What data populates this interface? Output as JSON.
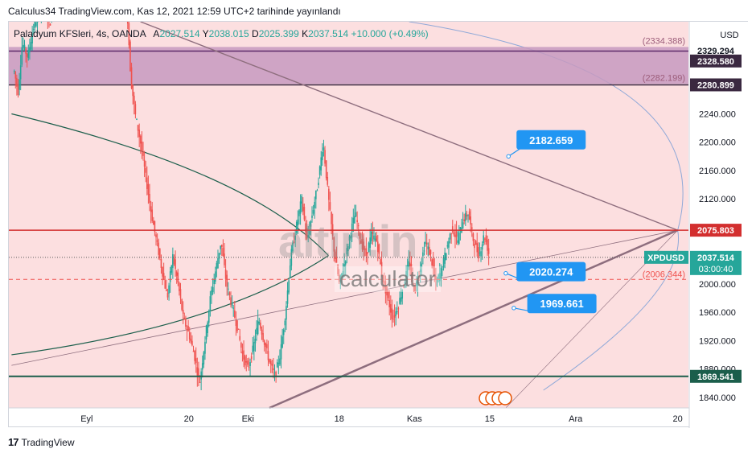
{
  "header": {
    "publisher_line": "Calculus34 TradingView.com, Kas 12, 2021 12:59 UTC+2 tarihinde yayınlandı"
  },
  "legend": {
    "symbol": "Paladyum KFSleri, 4s, OANDA",
    "open_label": "A",
    "open": "2027.514",
    "high_label": "Y",
    "high": "2038.015",
    "low_label": "D",
    "low": "2025.399",
    "close_label": "K",
    "close": "2037.514",
    "change": "+10.000 (+0.49%)"
  },
  "currency": "USD",
  "footer": {
    "brand": "TradingView",
    "logo_icon": "tradingview-logo-icon"
  },
  "watermark": {
    "brand": "altın.in",
    "sub": "calculator"
  },
  "colors": {
    "bg": "#fcdfe0",
    "zone": "#c79ac0",
    "up": "#26a69a",
    "down": "#ef5350",
    "red_line": "#d32f2f",
    "dark_green": "#1b5e4b",
    "trend": "#8e6e7e",
    "arc": "#90a9d8",
    "callout": "#2196f3"
  },
  "chart_data": {
    "type": "candlestick",
    "title": "Paladyum KFSleri, 4s, OANDA",
    "ylabel": "USD",
    "ylim": [
      1825,
      2370
    ],
    "y_ticks": [
      1840,
      1880,
      1920,
      1960,
      2000,
      2040,
      2080,
      2120,
      2160,
      2200,
      2240
    ],
    "y_tick_labels": [
      "1840.000",
      "1880.000",
      "1920.000",
      "1960.000",
      "2000.000",
      "2040.000",
      "2080.000",
      "2120.000",
      "2160.000",
      "2200.000",
      "2240.000"
    ],
    "x_tick_labels": [
      {
        "label": "Eyl",
        "day": 0
      },
      {
        "label": "20",
        "day": 19
      },
      {
        "label": "Eki",
        "day": 30
      },
      {
        "label": "18",
        "day": 47
      },
      {
        "label": "Kas",
        "day": 61
      },
      {
        "label": "15",
        "day": 75
      },
      {
        "label": "Ara",
        "day": 91
      },
      {
        "label": "20",
        "day": 110
      }
    ],
    "x_range_days": [
      -14.5,
      112
    ],
    "price_path": [
      [
        -13.5,
        2300
      ],
      [
        -12.8,
        2270
      ],
      [
        -12,
        2340
      ],
      [
        -11,
        2320
      ],
      [
        -10,
        2360
      ],
      [
        -9,
        2380
      ],
      [
        -8,
        2390
      ],
      [
        -7,
        2370
      ],
      [
        7.5,
        2390
      ],
      [
        8.2,
        2290
      ],
      [
        9,
        2240
      ],
      [
        10,
        2200
      ],
      [
        11,
        2150
      ],
      [
        12,
        2100
      ],
      [
        13,
        2060
      ],
      [
        14,
        2020
      ],
      [
        15,
        1980
      ],
      [
        16,
        2040
      ],
      [
        17,
        2000
      ],
      [
        18,
        1950
      ],
      [
        19,
        1930
      ],
      [
        20,
        1900
      ],
      [
        21,
        1860
      ],
      [
        22,
        1920
      ],
      [
        23,
        1980
      ],
      [
        24,
        2020
      ],
      [
        25,
        2060
      ],
      [
        26,
        2000
      ],
      [
        27,
        1970
      ],
      [
        28,
        1940
      ],
      [
        29,
        1900
      ],
      [
        30,
        1880
      ],
      [
        31,
        1910
      ],
      [
        32,
        1950
      ],
      [
        33,
        1920
      ],
      [
        34,
        1890
      ],
      [
        35,
        1870
      ],
      [
        36,
        1900
      ],
      [
        37,
        1960
      ],
      [
        38,
        2040
      ],
      [
        39,
        2080
      ],
      [
        40,
        2120
      ],
      [
        41,
        2060
      ],
      [
        42,
        2100
      ],
      [
        43,
        2140
      ],
      [
        44,
        2200
      ],
      [
        45,
        2120
      ],
      [
        46,
        2050
      ],
      [
        47,
        2000
      ],
      [
        48,
        2030
      ],
      [
        49,
        2070
      ],
      [
        50,
        2100
      ],
      [
        51,
        2060
      ],
      [
        52,
        2040
      ],
      [
        53,
        2070
      ],
      [
        54,
        2060
      ],
      [
        55,
        2010
      ],
      [
        56,
        1980
      ],
      [
        57,
        1950
      ],
      [
        58,
        1970
      ],
      [
        59,
        2000
      ],
      [
        60,
        2030
      ],
      [
        61,
        1990
      ],
      [
        62,
        2020
      ],
      [
        63,
        2060
      ],
      [
        64,
        2040
      ],
      [
        65,
        2000
      ],
      [
        66,
        2020
      ],
      [
        67,
        2050
      ],
      [
        68,
        2080
      ],
      [
        69,
        2060
      ],
      [
        70,
        2090
      ],
      [
        71,
        2100
      ],
      [
        72,
        2060
      ],
      [
        73,
        2040
      ],
      [
        74,
        2070
      ],
      [
        75,
        2037.5
      ]
    ],
    "horizontal_levels": [
      {
        "name": "red-level",
        "value": 2075.803,
        "label": "2075.803"
      },
      {
        "name": "green-level",
        "value": 1869.541,
        "label": "1869.541"
      },
      {
        "name": "dashed-level",
        "value": 2006.344,
        "label": "(2006.344)"
      },
      {
        "name": "zone-top",
        "value": 2328.58,
        "label": "2328.580"
      },
      {
        "name": "zone-bottom",
        "value": 2280.899,
        "label": "2280.899"
      }
    ],
    "zone": {
      "top": 2334.388,
      "bottom": 2282.199,
      "top_label": "(2334.388)",
      "bottom_label": "(2282.199)"
    },
    "extra_price_labels": [
      {
        "name": "price-tag-2329",
        "value": 2329.294,
        "label": "2329.294"
      }
    ],
    "current_price": {
      "symbol": "XPDUSD",
      "value": 2037.514,
      "label": "2037.514",
      "countdown": "03:00:40"
    },
    "callouts": [
      {
        "name": "callout-2182",
        "label": "2182.659",
        "day": 83,
        "value": 2182.659
      },
      {
        "name": "callout-2020",
        "label": "2020.274",
        "day": 83,
        "value": 2020.274
      },
      {
        "name": "callout-1969",
        "label": "1969.661",
        "day": 83,
        "value": 1969.661
      }
    ]
  }
}
